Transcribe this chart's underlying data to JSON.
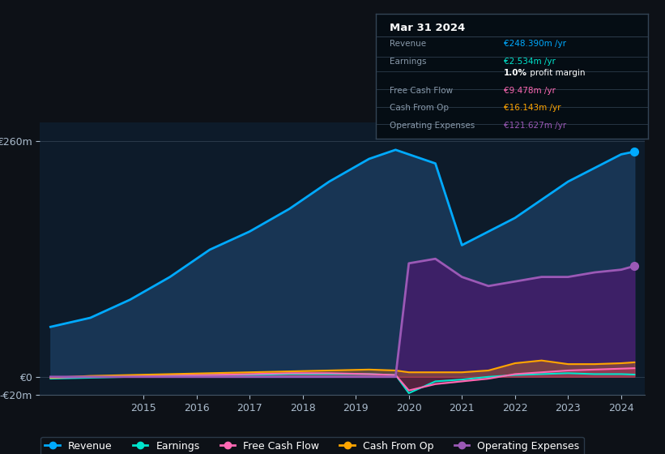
{
  "bg_color": "#0d1117",
  "chart_bg": "#0d1b2a",
  "years": [
    2013.25,
    2014.0,
    2014.75,
    2015.5,
    2016.25,
    2017.0,
    2017.75,
    2018.5,
    2019.25,
    2019.75,
    2020.0,
    2020.5,
    2021.0,
    2021.5,
    2022.0,
    2022.5,
    2023.0,
    2023.5,
    2024.0,
    2024.25
  ],
  "revenue": [
    55,
    65,
    85,
    110,
    140,
    160,
    185,
    215,
    240,
    250,
    245,
    235,
    145,
    160,
    175,
    195,
    215,
    230,
    245,
    248
  ],
  "earnings": [
    -2,
    -1,
    0,
    1,
    2,
    2,
    3,
    3,
    3,
    2,
    -18,
    -5,
    -3,
    0,
    2,
    3,
    4,
    3,
    3,
    2.5
  ],
  "free_cash_flow": [
    -1,
    0,
    1,
    2,
    2,
    3,
    4,
    4,
    3,
    2,
    -15,
    -8,
    -5,
    -2,
    3,
    5,
    7,
    8,
    9,
    9.5
  ],
  "cash_from_op": [
    -1,
    1,
    2,
    3,
    4,
    5,
    6,
    7,
    8,
    7,
    5,
    5,
    5,
    7,
    15,
    18,
    14,
    14,
    15,
    16
  ],
  "operating_expenses": [
    0,
    0,
    0,
    0,
    0,
    0,
    0,
    0,
    0,
    0,
    125,
    130,
    110,
    100,
    105,
    110,
    110,
    115,
    118,
    122
  ],
  "revenue_color": "#00aaff",
  "earnings_color": "#00e5cc",
  "fcf_color": "#ff69b4",
  "cashop_color": "#ffa500",
  "opex_color": "#9b59b6",
  "revenue_fill": "#1a3a5c",
  "opex_fill": "#4a1a6e",
  "xtick_labels": [
    "2015",
    "2016",
    "2017",
    "2018",
    "2019",
    "2020",
    "2021",
    "2022",
    "2023",
    "2024"
  ],
  "legend_items": [
    "Revenue",
    "Earnings",
    "Free Cash Flow",
    "Cash From Op",
    "Operating Expenses"
  ],
  "legend_colors": [
    "#00aaff",
    "#00e5cc",
    "#ff69b4",
    "#ffa500",
    "#9b59b6"
  ],
  "info_box": {
    "title": "Mar 31 2024",
    "rows": [
      {
        "label": "Revenue",
        "value": "€248.390m /yr",
        "color": "#00aaff"
      },
      {
        "label": "Earnings",
        "value": "€2.534m /yr",
        "color": "#00e5cc"
      },
      {
        "label": "",
        "value": "1.0% profit margin",
        "color": "#ffffff"
      },
      {
        "label": "Free Cash Flow",
        "value": "€9.478m /yr",
        "color": "#ff69b4"
      },
      {
        "label": "Cash From Op",
        "value": "€16.143m /yr",
        "color": "#ffa500"
      },
      {
        "label": "Operating Expenses",
        "value": "€121.627m /yr",
        "color": "#9b59b6"
      }
    ]
  }
}
